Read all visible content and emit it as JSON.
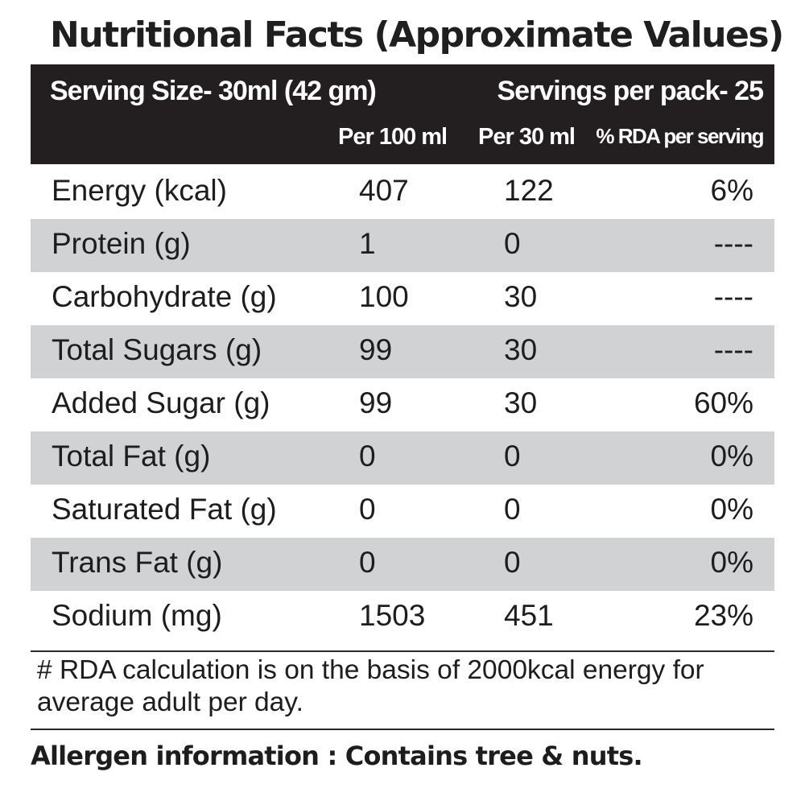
{
  "title": "Nutritional Facts (Approximate Values)",
  "header": {
    "serving_size": "Serving Size-  30ml (42 gm)",
    "servings_per_pack": "Servings per pack- 25",
    "col1": "Per 100 ml",
    "col2": "Per 30 ml",
    "col3": "% RDA per serving"
  },
  "rows": [
    {
      "name": "Energy (kcal)",
      "per100": "407",
      "per30": "122",
      "rda": "6%"
    },
    {
      "name": "Protein (g)",
      "per100": "1",
      "per30": "0",
      "rda": "----"
    },
    {
      "name": "Carbohydrate (g)",
      "per100": "100",
      "per30": "30",
      "rda": "----"
    },
    {
      "name": "Total Sugars (g)",
      "per100": "99",
      "per30": "30",
      "rda": "----"
    },
    {
      "name": "Added Sugar (g)",
      "per100": "99",
      "per30": "30",
      "rda": "60%"
    },
    {
      "name": "Total Fat (g)",
      "per100": "0",
      "per30": "0",
      "rda": "0%"
    },
    {
      "name": "Saturated Fat (g)",
      "per100": "0",
      "per30": "0",
      "rda": "0%"
    },
    {
      "name": "Trans Fat (g)",
      "per100": "0",
      "per30": "0",
      "rda": "0%"
    },
    {
      "name": "Sodium (mg)",
      "per100": "1503",
      "per30": "451",
      "rda": "23%"
    }
  ],
  "footnote": "# RDA calculation is on the basis of 2000kcal energy for average adult per day.",
  "allergen": "Allergen information : Contains tree & nuts.",
  "colors": {
    "header_bg": "#231f20",
    "shaded_row": "#d1d2d4",
    "text": "#1d1d1d"
  }
}
